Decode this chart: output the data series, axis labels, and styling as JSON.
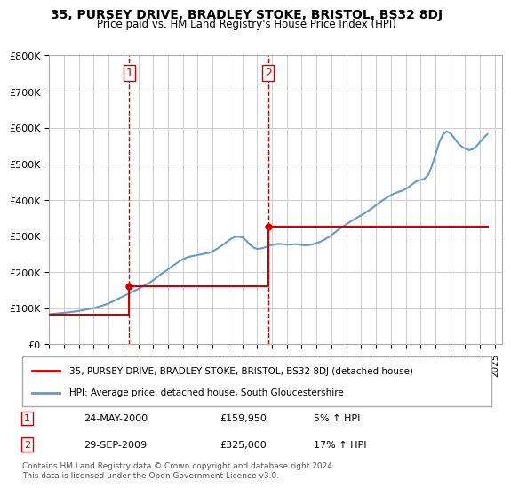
{
  "title": "35, PURSEY DRIVE, BRADLEY STOKE, BRISTOL, BS32 8DJ",
  "subtitle": "Price paid vs. HM Land Registry's House Price Index (HPI)",
  "hpi_label": "HPI: Average price, detached house, South Gloucestershire",
  "price_label": "35, PURSEY DRIVE, BRADLEY STOKE, BRISTOL, BS32 8DJ (detached house)",
  "legend1_date": "24-MAY-2000",
  "legend1_price": "£159,950",
  "legend1_hpi": "5% ↑ HPI",
  "legend2_date": "29-SEP-2009",
  "legend2_price": "£325,000",
  "legend2_hpi": "17% ↑ HPI",
  "footnote1": "Contains HM Land Registry data © Crown copyright and database right 2024.",
  "footnote2": "This data is licensed under the Open Government Licence v3.0.",
  "sale1_year": 2000.38,
  "sale1_price": 159950,
  "sale2_year": 2009.74,
  "sale2_price": 325000,
  "ylim": [
    0,
    800000
  ],
  "xlim": [
    1995,
    2025.5
  ],
  "yticks": [
    0,
    100000,
    200000,
    300000,
    400000,
    500000,
    600000,
    700000,
    800000
  ],
  "xticks": [
    1995,
    1996,
    1997,
    1998,
    1999,
    2000,
    2001,
    2002,
    2003,
    2004,
    2005,
    2006,
    2007,
    2008,
    2009,
    2010,
    2011,
    2012,
    2013,
    2014,
    2015,
    2016,
    2017,
    2018,
    2019,
    2020,
    2021,
    2022,
    2023,
    2024,
    2025
  ],
  "price_color": "#cc0000",
  "hpi_color": "#6699cc",
  "background_color": "#ffffff",
  "grid_color": "#cccccc",
  "vline_color": "#cc0000",
  "hpi_years": [
    1995.0,
    1995.25,
    1995.5,
    1995.75,
    1996.0,
    1996.25,
    1996.5,
    1996.75,
    1997.0,
    1997.25,
    1997.5,
    1997.75,
    1998.0,
    1998.25,
    1998.5,
    1998.75,
    1999.0,
    1999.25,
    1999.5,
    1999.75,
    2000.0,
    2000.25,
    2000.5,
    2000.75,
    2001.0,
    2001.25,
    2001.5,
    2001.75,
    2002.0,
    2002.25,
    2002.5,
    2002.75,
    2003.0,
    2003.25,
    2003.5,
    2003.75,
    2004.0,
    2004.25,
    2004.5,
    2004.75,
    2005.0,
    2005.25,
    2005.5,
    2005.75,
    2006.0,
    2006.25,
    2006.5,
    2006.75,
    2007.0,
    2007.25,
    2007.5,
    2007.75,
    2008.0,
    2008.25,
    2008.5,
    2008.75,
    2009.0,
    2009.25,
    2009.5,
    2009.75,
    2010.0,
    2010.25,
    2010.5,
    2010.75,
    2011.0,
    2011.25,
    2011.5,
    2011.75,
    2012.0,
    2012.25,
    2012.5,
    2012.75,
    2013.0,
    2013.25,
    2013.5,
    2013.75,
    2014.0,
    2014.25,
    2014.5,
    2014.75,
    2015.0,
    2015.25,
    2015.5,
    2015.75,
    2016.0,
    2016.25,
    2016.5,
    2016.75,
    2017.0,
    2017.25,
    2017.5,
    2017.75,
    2018.0,
    2018.25,
    2018.5,
    2018.75,
    2019.0,
    2019.25,
    2019.5,
    2019.75,
    2020.0,
    2020.25,
    2020.5,
    2020.75,
    2021.0,
    2021.25,
    2021.5,
    2021.75,
    2022.0,
    2022.25,
    2022.5,
    2022.75,
    2023.0,
    2023.25,
    2023.5,
    2023.75,
    2024.0,
    2024.25,
    2024.5
  ],
  "hpi_values": [
    83000,
    84000,
    85000,
    86000,
    87000,
    88000,
    89500,
    90500,
    92000,
    94000,
    96000,
    98000,
    100000,
    103000,
    106000,
    109000,
    113000,
    118000,
    123000,
    128000,
    133000,
    138000,
    143000,
    148000,
    153000,
    159000,
    165000,
    170000,
    177000,
    185000,
    193000,
    200000,
    207000,
    215000,
    222000,
    229000,
    235000,
    240000,
    243000,
    245000,
    247000,
    249000,
    251000,
    253000,
    257000,
    263000,
    270000,
    277000,
    285000,
    292000,
    297000,
    298000,
    296000,
    288000,
    277000,
    268000,
    264000,
    265000,
    268000,
    272000,
    275000,
    277000,
    278000,
    277000,
    276000,
    276000,
    277000,
    277000,
    275000,
    274000,
    275000,
    277000,
    280000,
    284000,
    289000,
    295000,
    302000,
    310000,
    318000,
    325000,
    332000,
    339000,
    345000,
    351000,
    357000,
    363000,
    370000,
    377000,
    385000,
    393000,
    400000,
    407000,
    413000,
    418000,
    422000,
    425000,
    430000,
    437000,
    445000,
    452000,
    455000,
    458000,
    468000,
    492000,
    525000,
    558000,
    580000,
    590000,
    585000,
    572000,
    558000,
    548000,
    542000,
    538000,
    540000,
    548000,
    560000,
    572000,
    582000
  ],
  "price_years": [
    1995.0,
    2000.38,
    2000.38,
    2009.74,
    2009.74,
    2024.5
  ],
  "price_values": [
    83000,
    83000,
    159950,
    159950,
    325000,
    325000
  ]
}
